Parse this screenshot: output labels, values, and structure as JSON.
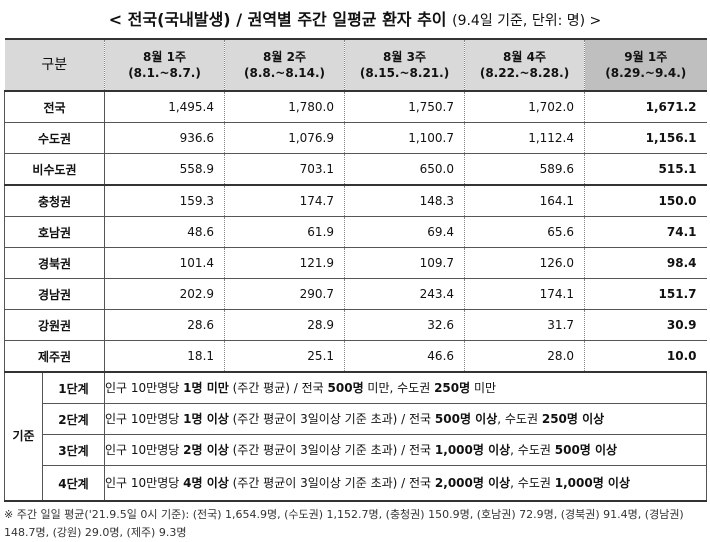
{
  "title": {
    "main": "< 전국(국내발생) / 권역별 주간 일평균 환자 추이",
    "sub": "(9.4일 기준, 단위: 명) >"
  },
  "table": {
    "corner_label": "구분",
    "columns": [
      {
        "week": "8월 1주",
        "range": "(8.1.~8.7.)"
      },
      {
        "week": "8월 2주",
        "range": "(8.8.~8.14.)"
      },
      {
        "week": "8월 3주",
        "range": "(8.15.~8.21.)"
      },
      {
        "week": "8월 4주",
        "range": "(8.22.~8.28.)"
      },
      {
        "week": "9월 1주",
        "range": "(8.29.~9.4.)"
      }
    ],
    "rows": [
      {
        "region": "전국",
        "values": [
          "1,495.4",
          "1,780.0",
          "1,750.7",
          "1,702.0",
          "1,671.2"
        ]
      },
      {
        "region": "수도권",
        "values": [
          "936.6",
          "1,076.9",
          "1,100.7",
          "1,112.4",
          "1,156.1"
        ]
      },
      {
        "region": "비수도권",
        "values": [
          "558.9",
          "703.1",
          "650.0",
          "589.6",
          "515.1"
        ]
      },
      {
        "region": "충청권",
        "values": [
          "159.3",
          "174.7",
          "148.3",
          "164.1",
          "150.0"
        ]
      },
      {
        "region": "호남권",
        "values": [
          "48.6",
          "61.9",
          "69.4",
          "65.6",
          "74.1"
        ]
      },
      {
        "region": "경북권",
        "values": [
          "101.4",
          "121.9",
          "109.7",
          "126.0",
          "98.4"
        ]
      },
      {
        "region": "경남권",
        "values": [
          "202.9",
          "290.7",
          "243.4",
          "174.1",
          "151.7"
        ]
      },
      {
        "region": "강원권",
        "values": [
          "28.6",
          "28.9",
          "32.6",
          "31.7",
          "30.9"
        ]
      },
      {
        "region": "제주권",
        "values": [
          "18.1",
          "25.1",
          "46.6",
          "28.0",
          "10.0"
        ]
      }
    ]
  },
  "criteria": {
    "side_label": "기준",
    "levels": [
      {
        "level": "1단계",
        "parts": [
          {
            "t": "인구 10만명당 ",
            "b": false
          },
          {
            "t": "1명 미만",
            "b": true
          },
          {
            "t": " (주간 평균) / 전국 ",
            "b": false
          },
          {
            "t": "500명",
            "b": true
          },
          {
            "t": " 미만, 수도권 ",
            "b": false
          },
          {
            "t": "250명",
            "b": true
          },
          {
            "t": " 미만",
            "b": false
          }
        ]
      },
      {
        "level": "2단계",
        "parts": [
          {
            "t": "인구 10만명당 ",
            "b": false
          },
          {
            "t": "1명 이상",
            "b": true
          },
          {
            "t": " (주간 평균이 3일이상 기준 초과) / 전국 ",
            "b": false
          },
          {
            "t": "500명 이상",
            "b": true
          },
          {
            "t": ", 수도권 ",
            "b": false
          },
          {
            "t": "250명 이상",
            "b": true
          }
        ]
      },
      {
        "level": "3단계",
        "parts": [
          {
            "t": "인구 10만명당 ",
            "b": false
          },
          {
            "t": "2명 이상",
            "b": true
          },
          {
            "t": " (주간 평균이 3일이상 기준 초과) / 전국 ",
            "b": false
          },
          {
            "t": "1,000명 이상",
            "b": true
          },
          {
            "t": ", 수도권 ",
            "b": false
          },
          {
            "t": "500명 이상",
            "b": true
          }
        ]
      },
      {
        "level": "4단계",
        "parts": [
          {
            "t": "인구 10만명당 ",
            "b": false
          },
          {
            "t": "4명 이상",
            "b": true
          },
          {
            "t": " (주간 평균이 3일이상 기준 초과) / 전국 ",
            "b": false
          },
          {
            "t": "2,000명 이상",
            "b": true
          },
          {
            "t": ", 수도권 ",
            "b": false
          },
          {
            "t": "1,000명 이상",
            "b": true
          }
        ]
      }
    ]
  },
  "footnote": "※ 주간 일일 평균('21.9.5일 0시 기준): (전국) 1,654.9명, (수도권) 1,152.7명, (충청권) 150.9명, (호남권) 72.9명, (경북권) 91.4명, (경남권) 148.7명, (강원) 29.0명, (제주) 9.3명"
}
